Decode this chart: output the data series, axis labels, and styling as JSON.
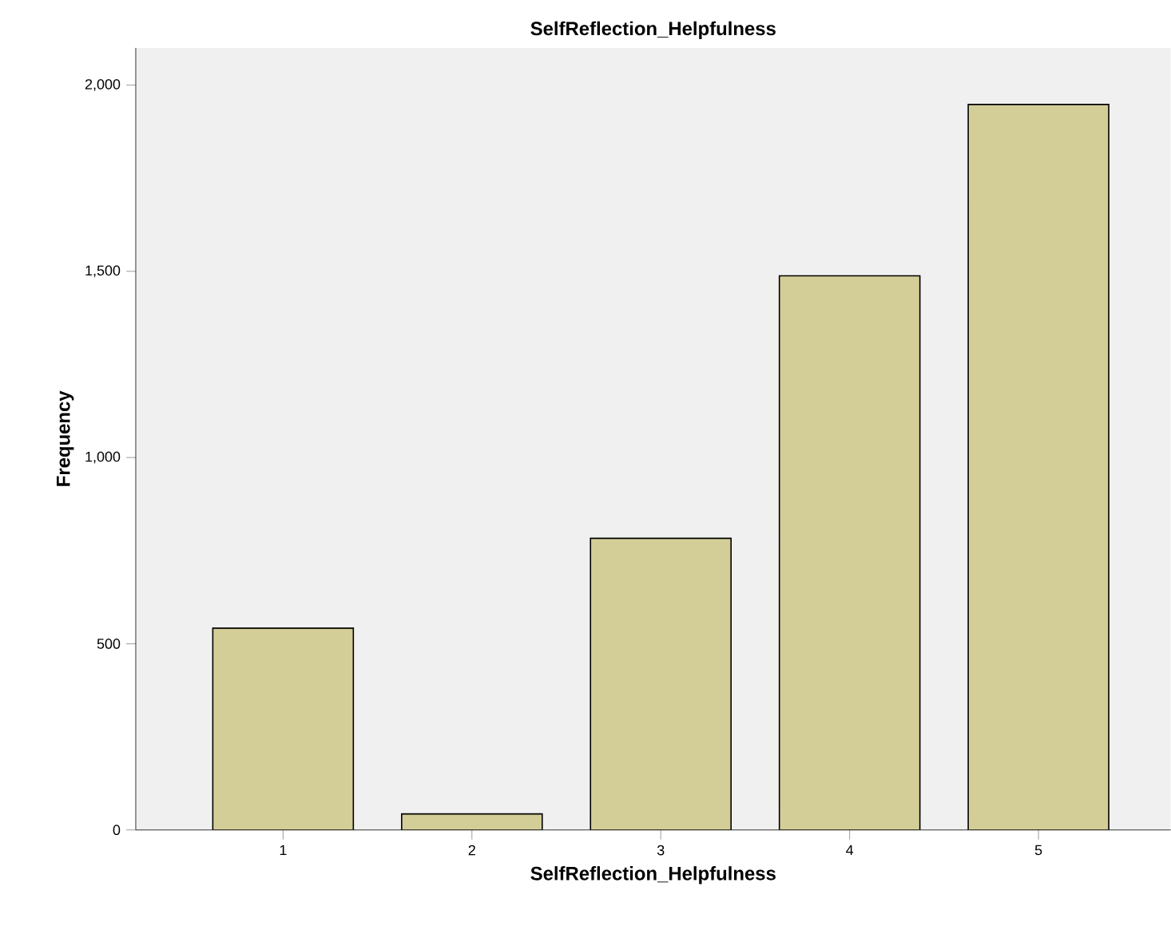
{
  "chart_data": {
    "type": "bar",
    "title": "SelfReflection_Helpfulness",
    "xlabel": "SelfReflection_Helpfulness",
    "ylabel": "Frequency",
    "categories": [
      "1",
      "2",
      "3",
      "4",
      "5"
    ],
    "values": [
      542,
      43,
      783,
      1488,
      1948
    ],
    "color": "#d3ce97",
    "ylim": [
      0,
      2100
    ],
    "yticks": [
      0,
      500,
      {
        "value": 1000,
        "label": "1,000"
      },
      {
        "value": 1500,
        "label": "1,500"
      },
      {
        "value": 2000,
        "label": "2,000"
      }
    ],
    "grid": false
  }
}
